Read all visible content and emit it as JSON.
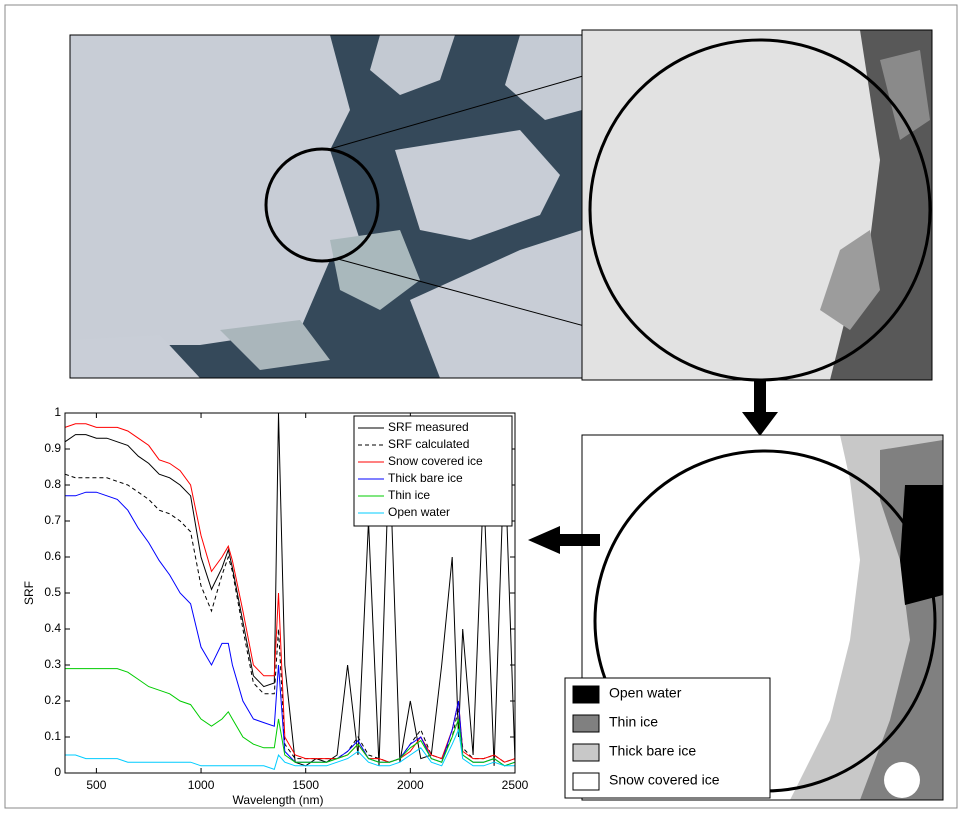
{
  "chart_data": {
    "type": "line",
    "xlabel": "Wavelength (nm)",
    "ylabel": "SRF",
    "x": [
      350,
      400,
      450,
      500,
      550,
      600,
      650,
      700,
      750,
      800,
      850,
      900,
      950,
      1000,
      1050,
      1100,
      1130,
      1150,
      1200,
      1250,
      1300,
      1350,
      1370,
      1400,
      1450,
      1500,
      1550,
      1600,
      1650,
      1700,
      1750,
      1800,
      1850,
      1900,
      1950,
      2000,
      2050,
      2100,
      2150,
      2200,
      2230,
      2250,
      2300,
      2350,
      2400,
      2450,
      2500
    ],
    "xlim": [
      350,
      2500
    ],
    "xticks": [
      500,
      1000,
      1500,
      2000,
      2500
    ],
    "ylim": [
      0,
      1
    ],
    "yticks": [
      0,
      0.1,
      0.2,
      0.3,
      0.4,
      0.5,
      0.6,
      0.7,
      0.8,
      0.9,
      1
    ],
    "legend": "upper right",
    "series": [
      {
        "name": "SRF measured",
        "color": "#000000",
        "values": [
          0.92,
          0.94,
          0.94,
          0.93,
          0.93,
          0.92,
          0.91,
          0.88,
          0.86,
          0.83,
          0.82,
          0.8,
          0.77,
          0.6,
          0.51,
          0.57,
          0.62,
          0.57,
          0.42,
          0.27,
          0.24,
          0.25,
          1,
          0.3,
          0.03,
          0.02,
          0.04,
          0.03,
          0.05,
          0.3,
          0.05,
          0.7,
          0.02,
          0.9,
          0.03,
          0.2,
          0.04,
          0.05,
          0.3,
          0.6,
          0.1,
          0.4,
          0.05,
          0.8,
          0.02,
          0.9,
          0.03
        ]
      },
      {
        "name": "SRF calculated",
        "color": "#000000",
        "dash": true,
        "values": [
          0.83,
          0.82,
          0.82,
          0.82,
          0.82,
          0.81,
          0.8,
          0.78,
          0.76,
          0.73,
          0.72,
          0.7,
          0.67,
          0.52,
          0.45,
          0.55,
          0.6,
          0.56,
          0.4,
          0.25,
          0.22,
          0.22,
          0.4,
          0.08,
          0.04,
          0.04,
          0.04,
          0.04,
          0.04,
          0.06,
          0.1,
          0.05,
          0.04,
          0.03,
          0.04,
          0.08,
          0.12,
          0.05,
          0.04,
          0.1,
          0.18,
          0.07,
          0.04,
          0.04,
          0.05,
          0.03,
          0.04
        ]
      },
      {
        "name": "Snow covered ice",
        "color": "#ff0000",
        "values": [
          0.96,
          0.97,
          0.97,
          0.96,
          0.96,
          0.96,
          0.95,
          0.93,
          0.91,
          0.87,
          0.86,
          0.84,
          0.8,
          0.66,
          0.56,
          0.6,
          0.63,
          0.59,
          0.45,
          0.3,
          0.27,
          0.27,
          0.5,
          0.1,
          0.05,
          0.04,
          0.04,
          0.04,
          0.04,
          0.05,
          0.08,
          0.04,
          0.04,
          0.03,
          0.04,
          0.06,
          0.1,
          0.05,
          0.04,
          0.12,
          0.2,
          0.06,
          0.04,
          0.04,
          0.05,
          0.03,
          0.04
        ]
      },
      {
        "name": "Thick bare ice",
        "color": "#0000ff",
        "values": [
          0.77,
          0.77,
          0.78,
          0.78,
          0.77,
          0.76,
          0.73,
          0.68,
          0.64,
          0.59,
          0.55,
          0.5,
          0.47,
          0.35,
          0.3,
          0.36,
          0.36,
          0.3,
          0.2,
          0.15,
          0.14,
          0.13,
          0.3,
          0.06,
          0.03,
          0.03,
          0.03,
          0.03,
          0.04,
          0.06,
          0.09,
          0.04,
          0.03,
          0.03,
          0.04,
          0.08,
          0.1,
          0.04,
          0.03,
          0.12,
          0.2,
          0.05,
          0.03,
          0.03,
          0.04,
          0.02,
          0.03
        ]
      },
      {
        "name": "Thin ice",
        "color": "#00cc00",
        "values": [
          0.29,
          0.29,
          0.29,
          0.29,
          0.29,
          0.29,
          0.28,
          0.26,
          0.24,
          0.23,
          0.22,
          0.2,
          0.19,
          0.15,
          0.13,
          0.15,
          0.17,
          0.15,
          0.1,
          0.08,
          0.07,
          0.07,
          0.15,
          0.05,
          0.03,
          0.03,
          0.03,
          0.03,
          0.04,
          0.05,
          0.08,
          0.04,
          0.03,
          0.03,
          0.04,
          0.07,
          0.09,
          0.04,
          0.03,
          0.1,
          0.15,
          0.05,
          0.03,
          0.03,
          0.04,
          0.02,
          0.03
        ]
      },
      {
        "name": "Open water",
        "color": "#00ccff",
        "values": [
          0.05,
          0.05,
          0.04,
          0.04,
          0.04,
          0.04,
          0.03,
          0.03,
          0.03,
          0.03,
          0.03,
          0.03,
          0.03,
          0.02,
          0.02,
          0.02,
          0.02,
          0.02,
          0.02,
          0.02,
          0.02,
          0.01,
          0.05,
          0.03,
          0.02,
          0.02,
          0.02,
          0.02,
          0.03,
          0.04,
          0.06,
          0.03,
          0.02,
          0.02,
          0.03,
          0.05,
          0.07,
          0.03,
          0.02,
          0.08,
          0.12,
          0.04,
          0.02,
          0.02,
          0.03,
          0.02,
          0.02
        ]
      }
    ]
  },
  "classification_legend": [
    "Open water",
    "Thin ice",
    "Thick bare ice",
    "Snow covered ice"
  ]
}
